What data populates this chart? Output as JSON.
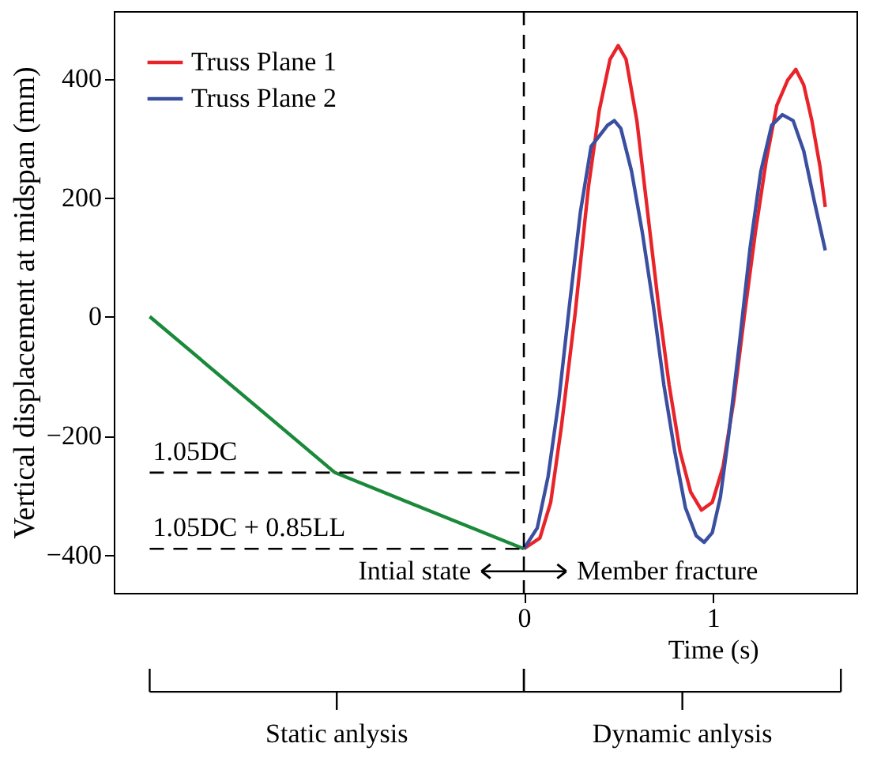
{
  "chart_data": {
    "type": "line",
    "xlabel": "Time (s)",
    "ylabel": "Vertical displacement at midspan (mm)",
    "xlim": [
      -2.17,
      1.76
    ],
    "xticks": [
      0,
      1
    ],
    "ylim": [
      -464,
      513
    ],
    "yticks": [
      -400,
      -200,
      0,
      200,
      400
    ],
    "grid": false,
    "legend": "top left",
    "line_style": "solid",
    "marker": "none",
    "series": [
      {
        "color": "#1a8a3a",
        "x": [
          -1.98,
          -1.0,
          0.0
        ],
        "values": [
          0,
          -262,
          -390
        ]
      },
      {
        "color": "#000000",
        "line_style": "dashed",
        "x": [
          -1.98,
          0.0
        ],
        "values": [
          -262,
          -262
        ]
      },
      {
        "color": "#000000",
        "line_style": "dashed",
        "x": [
          -1.98,
          0.0
        ],
        "values": [
          -390,
          -390
        ]
      },
      {
        "name": "Truss Plane 1",
        "color": "#e8242a",
        "x": [
          0.0,
          0.085,
          0.142,
          0.199,
          0.271,
          0.342,
          0.399,
          0.456,
          0.499,
          0.541,
          0.598,
          0.655,
          0.712,
          0.769,
          0.826,
          0.883,
          0.94,
          0.997,
          1.054,
          1.111,
          1.168,
          1.225,
          1.282,
          1.339,
          1.396,
          1.439,
          1.481,
          1.524,
          1.567,
          1.595
        ],
        "values": [
          -390,
          -372,
          -312,
          -184,
          4,
          218,
          346,
          432,
          455,
          432,
          329,
          175,
          21,
          -115,
          -226,
          -295,
          -325,
          -312,
          -252,
          -141,
          4,
          141,
          261,
          355,
          397,
          415,
          389,
          329,
          252,
          184
        ]
      },
      {
        "name": "Truss Plane 2",
        "color": "#3a4fa0",
        "x": [
          0.0,
          0.071,
          0.128,
          0.185,
          0.242,
          0.299,
          0.356,
          0.399,
          0.442,
          0.479,
          0.513,
          0.57,
          0.627,
          0.684,
          0.741,
          0.798,
          0.855,
          0.912,
          0.954,
          0.997,
          1.04,
          1.083,
          1.14,
          1.197,
          1.254,
          1.311,
          1.368,
          1.425,
          1.481,
          1.538,
          1.595
        ],
        "values": [
          -390,
          -355,
          -269,
          -141,
          21,
          175,
          286,
          303,
          321,
          329,
          316,
          244,
          141,
          21,
          -115,
          -226,
          -321,
          -368,
          -379,
          -363,
          -303,
          -201,
          -47,
          115,
          244,
          321,
          339,
          329,
          278,
          192,
          111
        ]
      }
    ],
    "ref_lines": [
      {
        "axis": "x",
        "value": 0,
        "color": "#000000",
        "line_style": "dashed"
      }
    ],
    "annotations": [
      {
        "text": "1.05DC",
        "x": -1.98,
        "y": -262
      },
      {
        "text": "1.05DC + 0.85LL",
        "x": -1.98,
        "y": -390
      },
      "Intial state",
      "Member fracture",
      "Static anlysis",
      "Dynamic anlysis"
    ]
  }
}
